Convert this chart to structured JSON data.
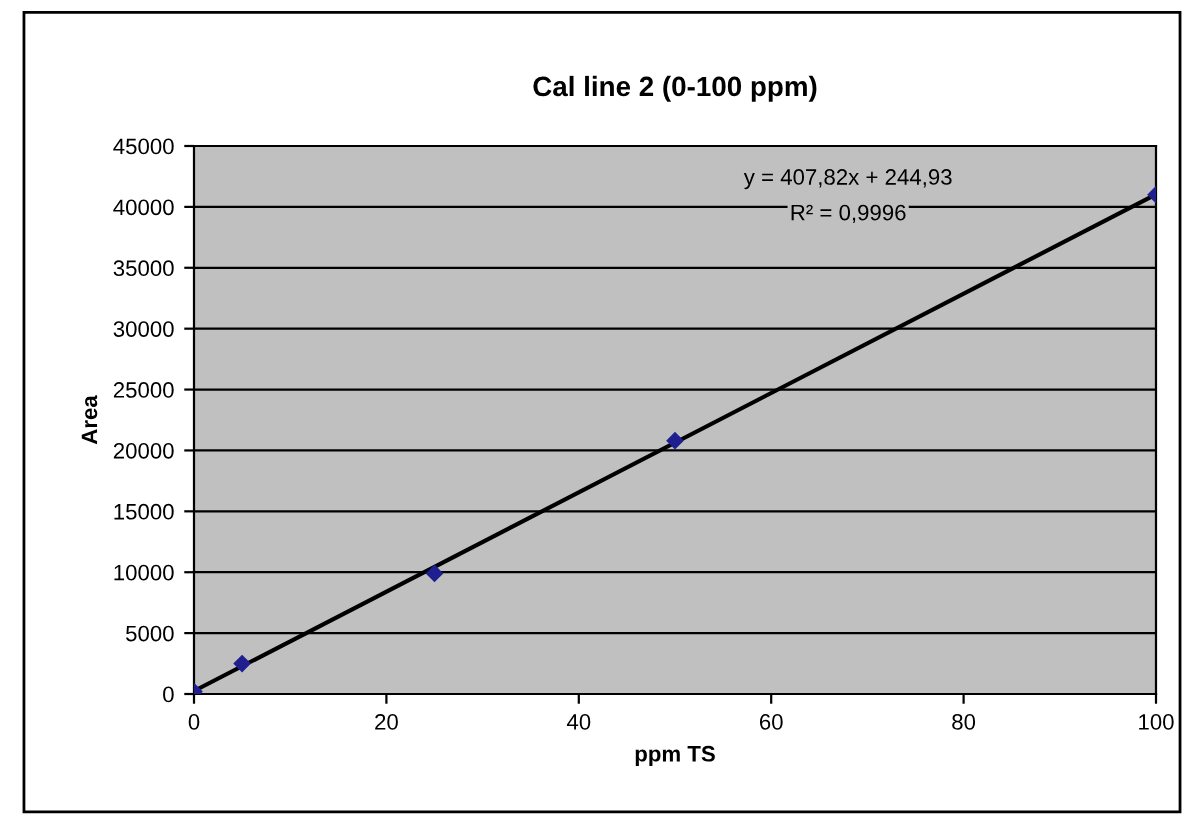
{
  "chart_data": {
    "type": "scatter",
    "title": "Cal line 2 (0-100 ppm)",
    "xlabel": "ppm TS",
    "ylabel": "Area",
    "series": [
      {
        "color": "#1f1f8f",
        "x": [
          0,
          5,
          25,
          50,
          100
        ],
        "values": [
          200,
          2500,
          9900,
          20800,
          41000
        ],
        "marker": "diamond"
      },
      {
        "type": "line",
        "color": "#000000",
        "x": [
          0,
          100
        ],
        "values": [
          245,
          41030
        ],
        "marker": "none"
      }
    ],
    "annotations": [
      "y = 407,82x + 244,93",
      "R² = 0,9996"
    ],
    "xlim": [
      0,
      100
    ],
    "xticks": [
      0,
      20,
      40,
      60,
      80,
      100
    ],
    "ylim": [
      0,
      45000
    ],
    "yticks": [
      0,
      5000,
      10000,
      15000,
      20000,
      25000,
      30000,
      35000,
      40000,
      45000
    ],
    "grid": "y",
    "legend": false
  }
}
